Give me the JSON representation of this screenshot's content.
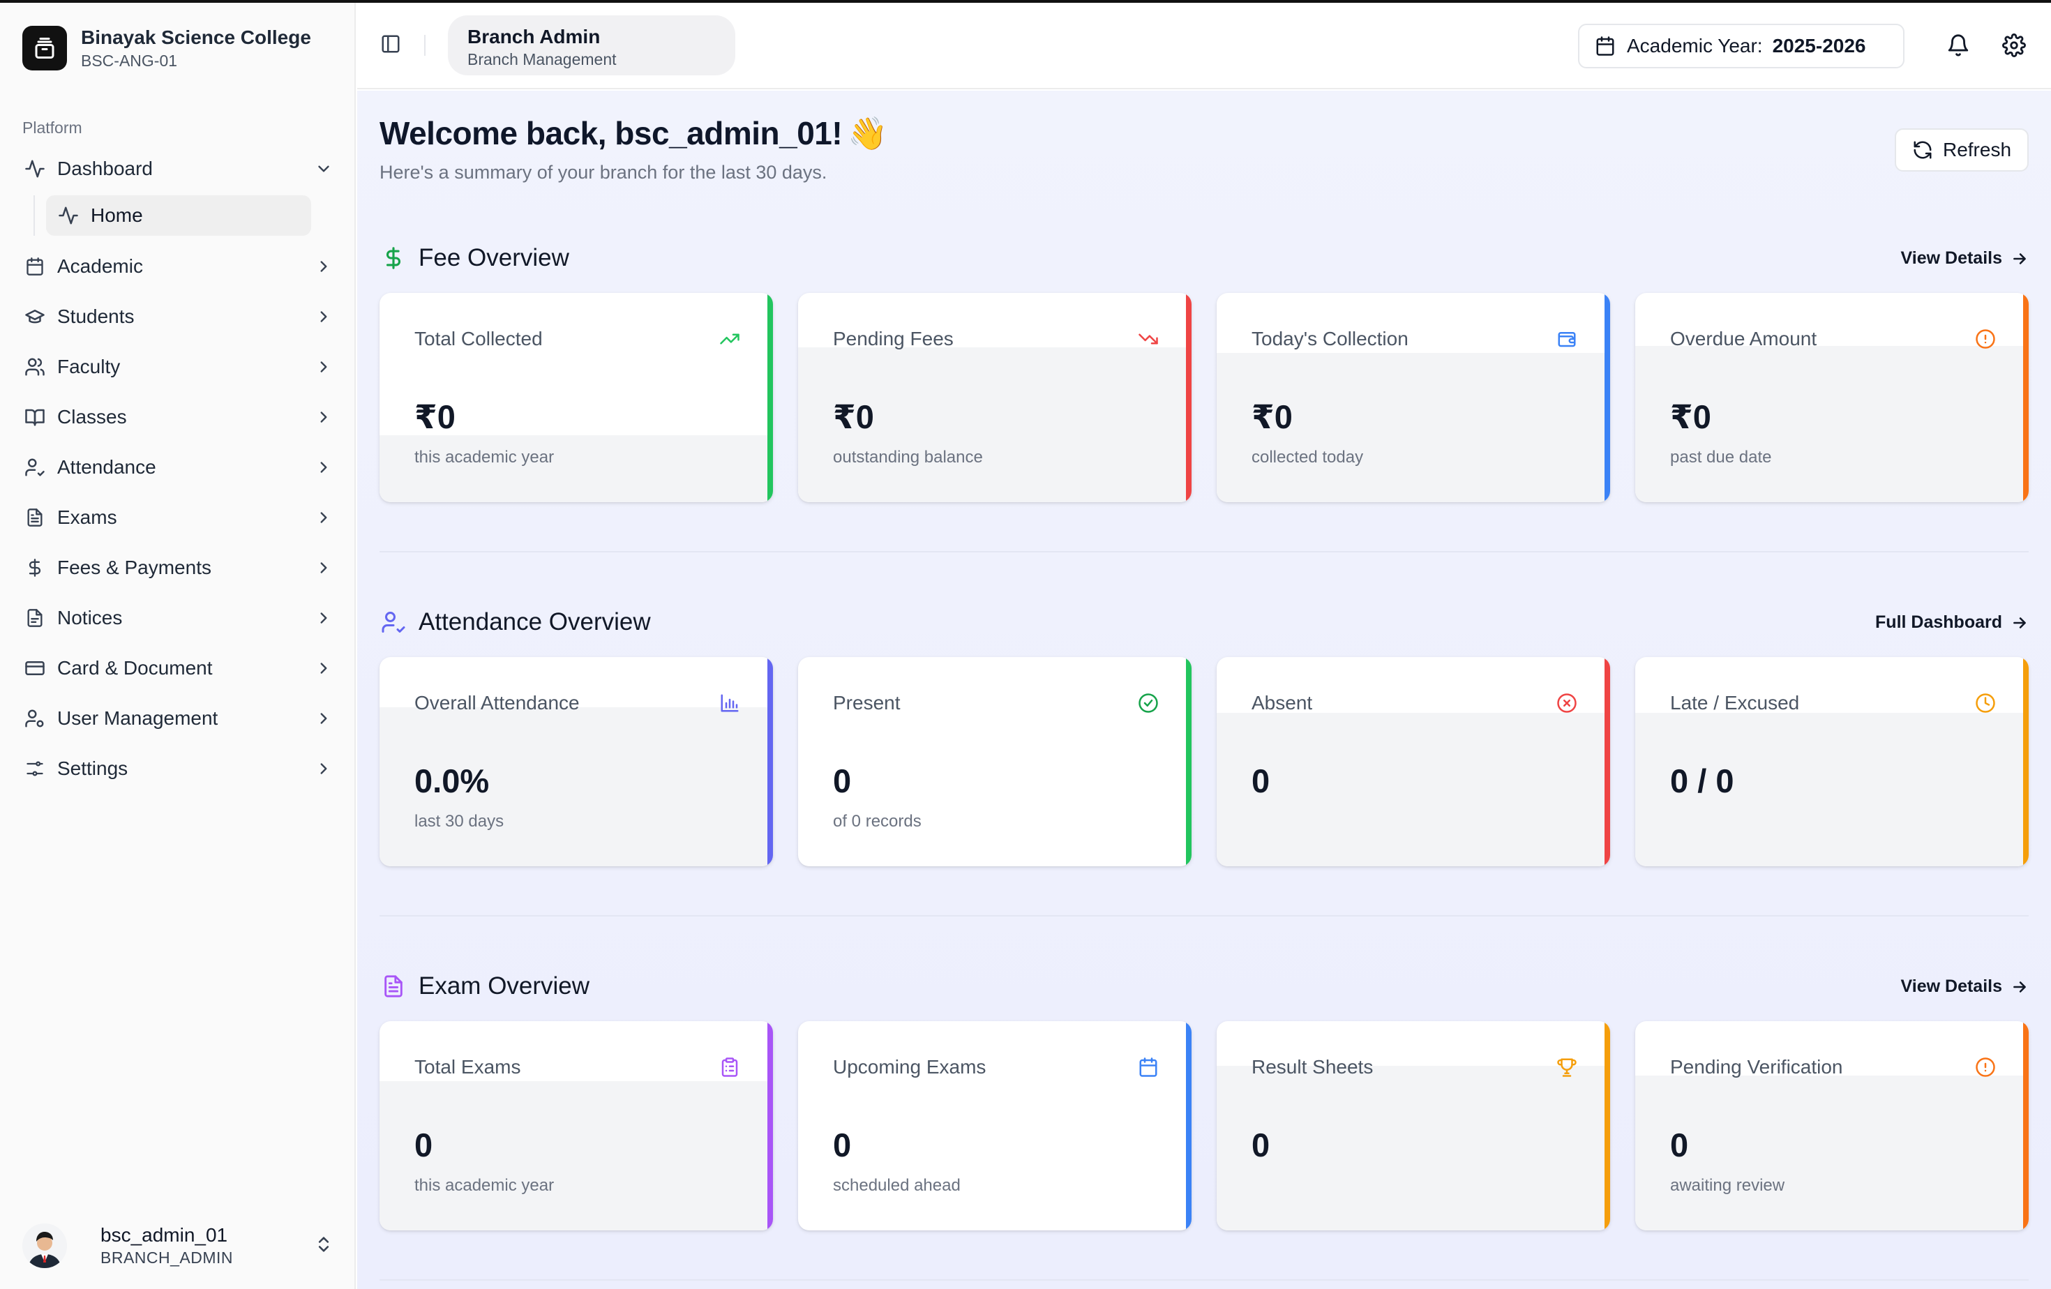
{
  "brand": {
    "name": "Binayak Science College",
    "code": "BSC-ANG-01"
  },
  "sidebar": {
    "group_label": "Platform",
    "items": [
      {
        "label": "Dashboard",
        "icon": "activity-icon",
        "expanded": true
      },
      {
        "label": "Academic",
        "icon": "calendar-icon"
      },
      {
        "label": "Students",
        "icon": "graduation-cap-icon"
      },
      {
        "label": "Faculty",
        "icon": "users-icon"
      },
      {
        "label": "Classes",
        "icon": "book-open-icon"
      },
      {
        "label": "Attendance",
        "icon": "user-check-icon"
      },
      {
        "label": "Exams",
        "icon": "file-text-icon"
      },
      {
        "label": "Fees & Payments",
        "icon": "dollar-icon"
      },
      {
        "label": "Notices",
        "icon": "notice-icon"
      },
      {
        "label": "Card & Document",
        "icon": "credit-card-icon"
      },
      {
        "label": "User Management",
        "icon": "user-cog-icon"
      },
      {
        "label": "Settings",
        "icon": "sliders-icon"
      }
    ],
    "sub_items": [
      {
        "label": "Home",
        "icon": "activity-icon"
      }
    ]
  },
  "user": {
    "name": "bsc_admin_01",
    "role": "BRANCH_ADMIN"
  },
  "header": {
    "role_title": "Branch Admin",
    "role_subtitle": "Branch Management",
    "academic_year_label": "Academic Year:",
    "academic_year_value": "2025-2026"
  },
  "main": {
    "welcome": "Welcome back, bsc_admin_01!",
    "wave": "👋",
    "summary": "Here's a summary of your branch for the last 30 days.",
    "refresh_label": "Refresh"
  },
  "sections": [
    {
      "title": "Fee Overview",
      "link": "View Details",
      "icon": "dollar-icon",
      "icon_color": "#16a34a",
      "cards": [
        {
          "label": "Total Collected",
          "value": "₹0",
          "sub": "this academic year",
          "icon": "trending-up-icon",
          "color": "#22c55e"
        },
        {
          "label": "Pending Fees",
          "value": "₹0",
          "sub": "outstanding balance",
          "icon": "trending-down-icon",
          "color": "#ef4444"
        },
        {
          "label": "Today's Collection",
          "value": "₹0",
          "sub": "collected today",
          "icon": "wallet-icon",
          "color": "#3b82f6"
        },
        {
          "label": "Overdue Amount",
          "value": "₹0",
          "sub": "past due date",
          "icon": "alert-circle-icon",
          "color": "#f97316"
        }
      ]
    },
    {
      "title": "Attendance Overview",
      "link": "Full Dashboard",
      "icon": "user-check-icon",
      "icon_color": "#6366f1",
      "cards": [
        {
          "label": "Overall Attendance",
          "value": "0.0%",
          "sub": "last 30 days",
          "icon": "bar-chart-icon",
          "color": "#6366f1"
        },
        {
          "label": "Present",
          "value": "0",
          "sub": "of 0 records",
          "icon": "check-circle-icon",
          "color": "#22c55e"
        },
        {
          "label": "Absent",
          "value": "0",
          "sub": "",
          "icon": "x-circle-icon",
          "color": "#ef4444"
        },
        {
          "label": "Late / Excused",
          "value": "0 / 0",
          "sub": "",
          "icon": "clock-icon",
          "color": "#f59e0b"
        }
      ]
    },
    {
      "title": "Exam Overview",
      "link": "View Details",
      "icon": "file-text-icon",
      "icon_color": "#a855f7",
      "cards": [
        {
          "label": "Total Exams",
          "value": "0",
          "sub": "this academic year",
          "icon": "clipboard-list-icon",
          "color": "#a855f7"
        },
        {
          "label": "Upcoming Exams",
          "value": "0",
          "sub": "scheduled ahead",
          "icon": "calendar-icon",
          "color": "#3b82f6"
        },
        {
          "label": "Result Sheets",
          "value": "0",
          "sub": "",
          "icon": "trophy-icon",
          "color": "#f59e0b"
        },
        {
          "label": "Pending Verification",
          "value": "0",
          "sub": "awaiting review",
          "icon": "alert-circle-icon",
          "color": "#f97316"
        }
      ]
    }
  ]
}
